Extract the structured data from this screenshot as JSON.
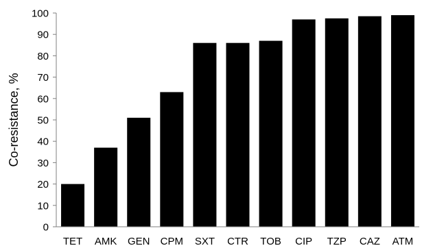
{
  "chart_data": {
    "type": "bar",
    "title": "",
    "xlabel": "",
    "ylabel": "Co-resistance, %",
    "categories": [
      "TET",
      "AMK",
      "GEN",
      "CPM",
      "SXT",
      "CTR",
      "TOB",
      "CIP",
      "TZP",
      "CAZ",
      "ATM"
    ],
    "values": [
      20,
      37,
      51,
      63,
      86,
      86,
      87,
      97,
      97.5,
      98.5,
      99
    ],
    "ylim": [
      0,
      100
    ],
    "yticks": [
      0,
      10,
      20,
      30,
      40,
      50,
      60,
      70,
      80,
      90,
      100
    ],
    "grid": false,
    "legend": "none",
    "bar_color": "#000000"
  }
}
